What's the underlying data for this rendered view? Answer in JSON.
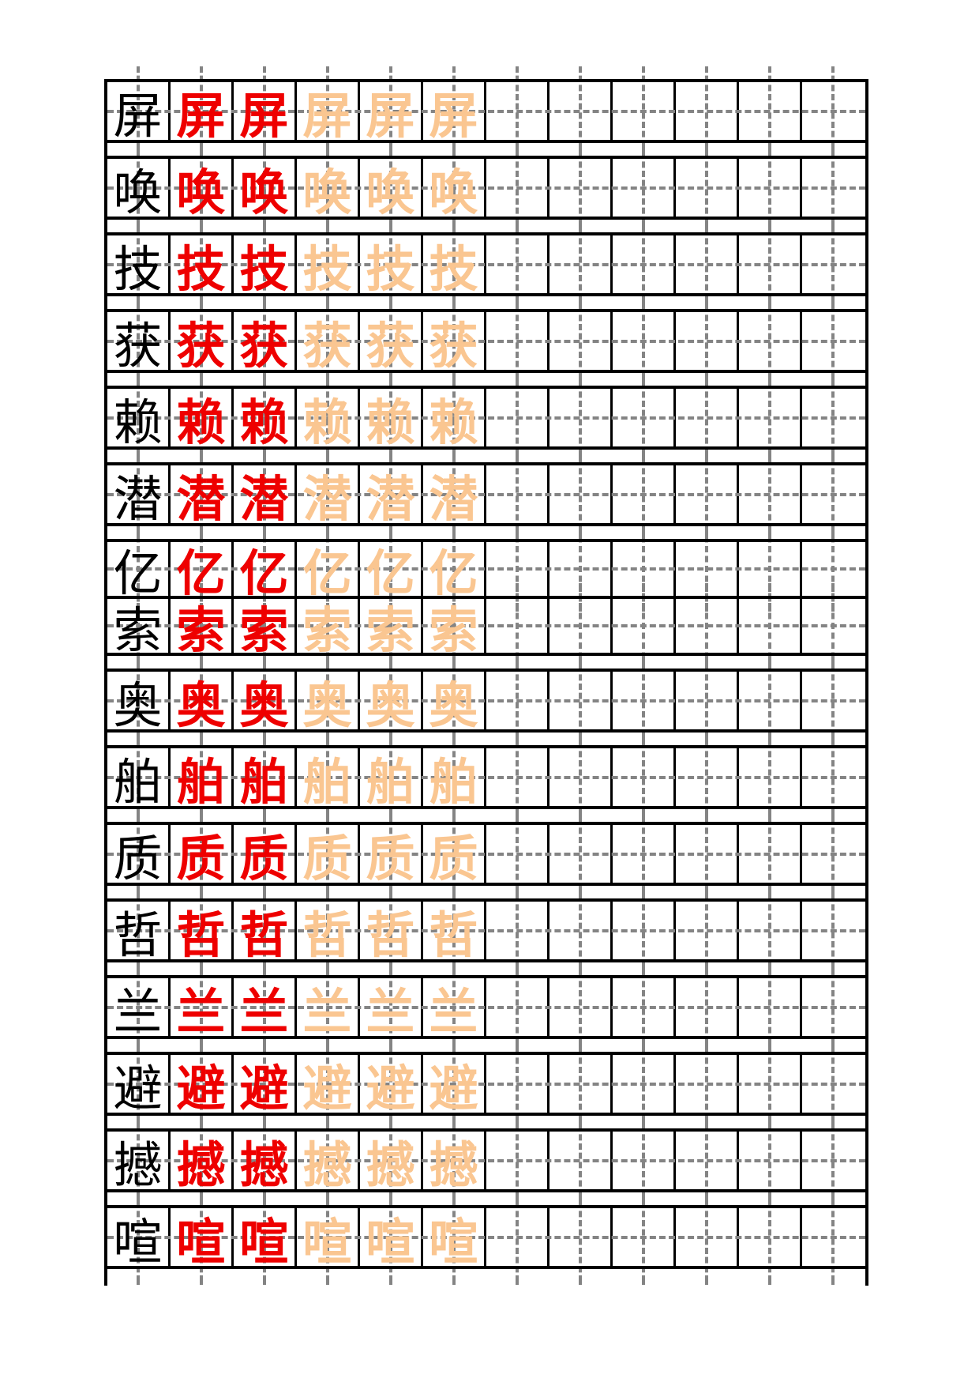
{
  "sheet": {
    "columns_per_row": 12,
    "cell_pattern": [
      "model",
      "stroke",
      "stroke",
      "trace",
      "trace",
      "trace",
      "empty",
      "empty",
      "empty",
      "empty",
      "empty",
      "empty"
    ],
    "colors": {
      "model_character": "#000000",
      "example_character": "#ee0000",
      "trace_character": "#fac691",
      "grid_border": "#000000",
      "guide_dash": "#848484",
      "background": "#ffffff"
    },
    "rows": [
      {
        "character": "屏",
        "attached_to_previous": false
      },
      {
        "character": "唤",
        "attached_to_previous": false
      },
      {
        "character": "技",
        "attached_to_previous": false
      },
      {
        "character": "获",
        "attached_to_previous": false
      },
      {
        "character": "赖",
        "attached_to_previous": false
      },
      {
        "character": "潜",
        "attached_to_previous": false
      },
      {
        "character": "亿",
        "attached_to_previous": false
      },
      {
        "character": "索",
        "attached_to_previous": true
      },
      {
        "character": "奥",
        "attached_to_previous": false
      },
      {
        "character": "舶",
        "attached_to_previous": false
      },
      {
        "character": "质",
        "attached_to_previous": false
      },
      {
        "character": "哲",
        "attached_to_previous": false
      },
      {
        "character": "兰",
        "attached_to_previous": false
      },
      {
        "character": "避",
        "attached_to_previous": false
      },
      {
        "character": "撼",
        "attached_to_previous": false
      },
      {
        "character": "喧",
        "attached_to_previous": false
      }
    ]
  }
}
